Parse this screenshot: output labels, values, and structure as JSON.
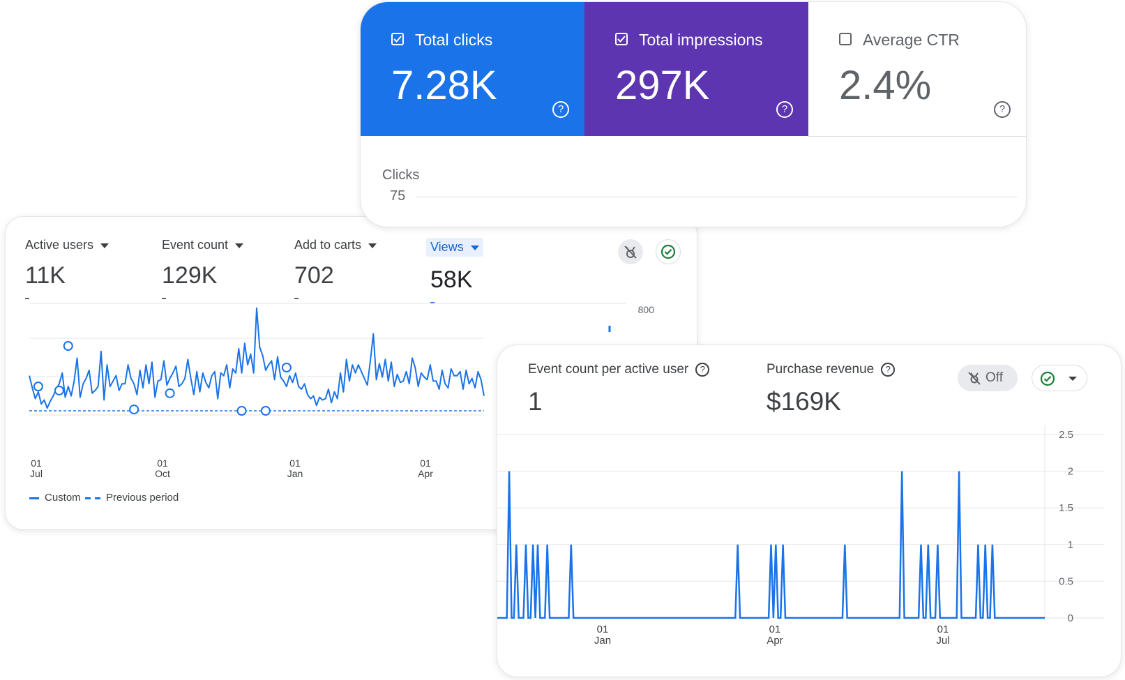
{
  "search_console": {
    "tiles": [
      {
        "label": "Total clicks",
        "value": "7.28K",
        "checked": true,
        "color": "#1a73e8"
      },
      {
        "label": "Total impressions",
        "value": "297K",
        "checked": true,
        "color": "#5e35b1"
      },
      {
        "label": "Average CTR",
        "value": "2.4%",
        "checked": false,
        "color": "#ffffff"
      }
    ],
    "help_glyph": "?",
    "chart": {
      "axis_title": "Clicks",
      "tick": "75"
    }
  },
  "ga_report": {
    "metrics": [
      {
        "label": "Active users",
        "value": "11K",
        "change": "-"
      },
      {
        "label": "Event count",
        "value": "129K",
        "change": "-"
      },
      {
        "label": "Add to carts",
        "value": "702",
        "change": "-"
      },
      {
        "label": "Views",
        "value": "58K",
        "change": "-"
      }
    ],
    "legend": {
      "custom": "Custom",
      "previous": "Previous period"
    }
  },
  "event_report": {
    "metrics": [
      {
        "label": "Event count per active user",
        "value": "1"
      },
      {
        "label": "Purchase revenue",
        "value": "$169K"
      }
    ],
    "off_label": "Off"
  },
  "icons": [
    "checkbox-checked-icon",
    "checkbox-unchecked-icon",
    "help-icon",
    "caret-down-icon",
    "compare-off-icon",
    "check-circle-icon"
  ],
  "colors": {
    "accent_blue": "#1a73e8",
    "purple": "#5e35b1",
    "green_check": "#188038"
  },
  "chart_data": [
    {
      "type": "line",
      "title": "",
      "y_ticks": [
        "800"
      ],
      "x_ticks": [
        {
          "day": "01",
          "month": "Jul"
        },
        {
          "day": "01",
          "month": "Oct"
        },
        {
          "day": "01",
          "month": "Jan"
        },
        {
          "day": "01",
          "month": "Apr"
        }
      ],
      "series": [
        {
          "name": "Custom",
          "style": "solid",
          "color": "#1a73e8",
          "values": [
            290,
            245,
            205,
            230,
            185,
            200,
            170,
            195,
            215,
            240,
            260,
            300,
            210,
            250,
            215,
            270,
            355,
            210,
            260,
            280,
            310,
            225,
            235,
            250,
            380,
            200,
            330,
            250,
            270,
            290,
            235,
            260,
            260,
            330,
            280,
            260,
            220,
            310,
            245,
            330,
            260,
            340,
            210,
            270,
            275,
            345,
            255,
            280,
            300,
            325,
            250,
            260,
            280,
            350,
            280,
            220,
            305,
            230,
            300,
            265,
            245,
            290,
            305,
            205,
            300,
            290,
            330,
            245,
            315,
            300,
            390,
            300,
            410,
            330,
            370,
            300,
            540,
            395,
            365,
            310,
            330,
            345,
            275,
            360,
            285,
            270,
            250,
            290,
            265,
            300,
            250,
            240,
            260,
            220,
            205,
            215,
            180,
            210,
            200,
            205,
            240,
            190,
            230,
            205,
            300,
            230,
            350,
            270,
            330,
            300,
            330,
            305,
            280,
            255,
            345,
            445,
            275,
            335,
            285,
            350,
            270,
            340,
            250,
            295,
            265,
            270,
            305,
            260,
            355,
            320,
            250,
            300,
            285,
            275,
            330,
            270,
            270,
            240,
            310,
            260,
            245,
            315,
            290,
            290,
            305,
            240,
            310,
            260,
            280,
            245,
            305,
            275,
            215
          ]
        },
        {
          "name": "Previous period",
          "style": "dashed",
          "color": "#1a73e8",
          "values_flat": 160
        }
      ],
      "markers": [
        {
          "x": 3,
          "y": 250
        },
        {
          "x": 10,
          "y": 235
        },
        {
          "x": 13,
          "y": 400
        },
        {
          "x": 35,
          "y": 165
        },
        {
          "x": 47,
          "y": 225
        },
        {
          "x": 71,
          "y": 160
        },
        {
          "x": 79,
          "y": 160
        },
        {
          "x": 86,
          "y": 320
        }
      ],
      "ylim": [
        0,
        800
      ]
    },
    {
      "type": "line",
      "title": "",
      "y_ticks": [
        "0",
        "0.5",
        "1",
        "1.5",
        "2",
        "2.5"
      ],
      "ylim": [
        0,
        2.5
      ],
      "x_ticks": [
        {
          "day": "01",
          "month": "Jan"
        },
        {
          "day": "01",
          "month": "Apr"
        },
        {
          "day": "01",
          "month": "Jul"
        }
      ],
      "series": [
        {
          "name": "",
          "color": "#1a73e8",
          "spikes": [
            [
              5,
              2
            ],
            [
              8,
              1
            ],
            [
              12,
              1
            ],
            [
              15,
              1
            ],
            [
              17,
              1
            ],
            [
              21,
              1
            ],
            [
              31,
              1
            ],
            [
              101,
              1
            ],
            [
              115,
              1
            ],
            [
              117,
              1
            ],
            [
              120,
              1
            ],
            [
              146,
              1
            ],
            [
              170,
              2
            ],
            [
              178,
              1
            ],
            [
              181,
              1
            ],
            [
              185,
              1
            ],
            [
              194,
              2
            ],
            [
              202,
              1
            ],
            [
              205,
              1
            ],
            [
              208,
              1
            ]
          ],
          "length": 230
        }
      ]
    }
  ]
}
